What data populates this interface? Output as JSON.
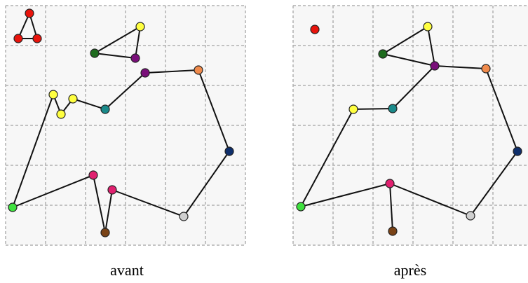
{
  "panels": [
    {
      "label": "avant"
    },
    {
      "label": "après"
    }
  ]
}
